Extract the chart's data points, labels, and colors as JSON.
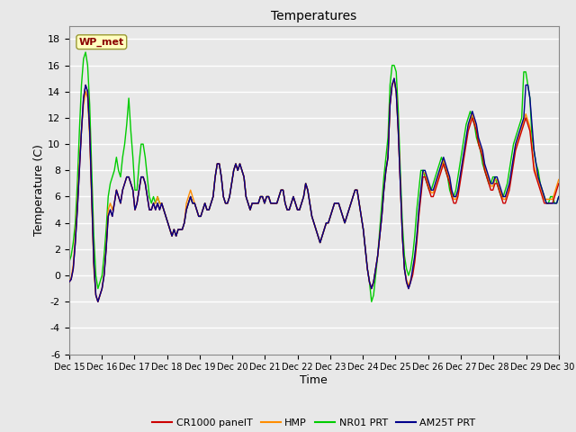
{
  "title": "Temperatures",
  "xlabel": "Time",
  "ylabel": "Temperature (C)",
  "ylim": [
    -6,
    19
  ],
  "yticks": [
    -6,
    -4,
    -2,
    0,
    2,
    4,
    6,
    8,
    10,
    12,
    14,
    16,
    18
  ],
  "x_labels": [
    "Dec 15",
    "Dec 16",
    "Dec 17",
    "Dec 18",
    "Dec 19",
    "Dec 20",
    "Dec 21",
    "Dec 22",
    "Dec 23",
    "Dec 24",
    "Dec 25",
    "Dec 26",
    "Dec 27",
    "Dec 28",
    "Dec 29",
    "Dec 30"
  ],
  "annotation_text": "WP_met",
  "annotation_color": "#8B0000",
  "annotation_bg": "#FFFFC0",
  "bg_color": "#E8E8E8",
  "plot_bg": "#E8E8E8",
  "grid_color": "white",
  "line_colors": {
    "CR1000 panelT": "#CC0000",
    "HMP": "#FF8C00",
    "NR01 PRT": "#00CC00",
    "AM25T PRT": "#00008B"
  },
  "legend_labels": [
    "CR1000 panelT",
    "HMP",
    "NR01 PRT",
    "AM25T PRT"
  ],
  "cr1000": [
    -0.5,
    -0.3,
    0.5,
    2.5,
    5.0,
    8.0,
    11.0,
    13.5,
    14.5,
    14.0,
    11.0,
    6.0,
    1.0,
    -1.5,
    -2.0,
    -1.5,
    -1.0,
    0.0,
    2.0,
    4.5,
    5.0,
    4.5,
    5.5,
    6.5,
    6.0,
    5.5,
    6.5,
    7.0,
    7.5,
    7.5,
    7.0,
    6.5,
    5.0,
    5.5,
    6.5,
    7.5,
    7.5,
    7.0,
    6.0,
    5.0,
    5.0,
    5.5,
    5.0,
    5.5,
    5.0,
    5.5,
    5.0,
    4.5,
    4.0,
    3.5,
    3.0,
    3.5,
    3.0,
    3.5,
    3.5,
    3.5,
    4.0,
    5.0,
    5.5,
    6.0,
    5.5,
    5.5,
    5.0,
    4.5,
    4.5,
    5.0,
    5.5,
    5.0,
    5.0,
    5.5,
    6.0,
    7.5,
    8.5,
    8.5,
    7.5,
    6.0,
    5.5,
    5.5,
    6.0,
    7.0,
    8.0,
    8.5,
    8.0,
    8.5,
    8.0,
    7.5,
    6.0,
    5.5,
    5.0,
    5.5,
    5.5,
    5.5,
    5.5,
    6.0,
    6.0,
    5.5,
    6.0,
    6.0,
    5.5,
    5.5,
    5.5,
    5.5,
    6.0,
    6.5,
    6.5,
    5.5,
    5.0,
    5.0,
    5.5,
    6.0,
    5.5,
    5.0,
    5.0,
    5.5,
    6.0,
    7.0,
    6.5,
    5.5,
    4.5,
    4.0,
    3.5,
    3.0,
    2.5,
    3.0,
    3.5,
    4.0,
    4.0,
    4.5,
    5.0,
    5.5,
    5.5,
    5.5,
    5.0,
    4.5,
    4.0,
    4.5,
    5.0,
    5.5,
    6.0,
    6.5,
    6.5,
    5.5,
    4.5,
    3.5,
    2.0,
    0.5,
    -0.5,
    -1.0,
    -0.5,
    0.5,
    1.5,
    3.0,
    4.5,
    6.5,
    8.0,
    9.0,
    13.0,
    14.5,
    15.0,
    14.0,
    11.0,
    7.0,
    3.0,
    0.5,
    -0.5,
    -1.0,
    -0.5,
    0.0,
    1.0,
    2.5,
    4.5,
    6.0,
    7.5,
    7.5,
    7.0,
    6.5,
    6.0,
    6.0,
    6.5,
    7.0,
    7.5,
    8.0,
    8.5,
    8.0,
    7.5,
    7.0,
    6.0,
    5.5,
    5.5,
    6.0,
    7.0,
    8.0,
    9.0,
    10.0,
    11.0,
    11.5,
    12.0,
    11.5,
    11.0,
    10.0,
    9.5,
    9.0,
    8.0,
    7.5,
    7.0,
    6.5,
    6.5,
    7.0,
    7.0,
    6.5,
    6.0,
    5.5,
    5.5,
    6.0,
    6.5,
    7.5,
    8.5,
    9.5,
    10.0,
    10.5,
    11.0,
    11.5,
    12.0,
    11.5,
    11.0,
    9.5,
    8.0,
    7.5,
    7.0,
    6.5,
    6.0,
    5.5,
    5.5,
    5.5,
    5.5,
    5.5,
    6.0,
    6.5,
    7.0
  ],
  "hmp": [
    -0.5,
    -0.2,
    0.8,
    3.0,
    5.5,
    8.5,
    11.0,
    13.0,
    14.0,
    13.5,
    10.5,
    5.5,
    0.5,
    -1.5,
    -2.0,
    -1.5,
    -1.0,
    0.2,
    2.2,
    5.0,
    5.5,
    5.0,
    5.5,
    6.5,
    6.0,
    5.5,
    6.5,
    7.0,
    7.5,
    7.5,
    7.0,
    6.5,
    5.0,
    5.5,
    6.5,
    7.5,
    7.5,
    7.0,
    6.0,
    5.0,
    5.0,
    5.5,
    5.5,
    6.0,
    5.5,
    5.5,
    5.0,
    4.5,
    4.0,
    3.5,
    3.0,
    3.5,
    3.0,
    3.5,
    3.5,
    3.5,
    4.0,
    5.5,
    6.0,
    6.5,
    6.0,
    5.5,
    5.0,
    4.5,
    4.5,
    5.0,
    5.5,
    5.0,
    5.0,
    5.5,
    6.0,
    7.5,
    8.5,
    8.5,
    7.5,
    6.0,
    5.5,
    5.5,
    6.0,
    7.0,
    8.0,
    8.5,
    8.0,
    8.5,
    8.0,
    7.5,
    6.0,
    5.5,
    5.0,
    5.5,
    5.5,
    5.5,
    5.5,
    6.0,
    6.0,
    5.5,
    6.0,
    6.0,
    5.5,
    5.5,
    5.5,
    5.5,
    6.0,
    6.5,
    6.5,
    5.5,
    5.0,
    5.0,
    5.5,
    6.0,
    5.5,
    5.0,
    5.0,
    5.5,
    6.0,
    7.0,
    6.5,
    5.5,
    4.5,
    4.0,
    3.5,
    3.0,
    2.5,
    3.0,
    3.5,
    4.0,
    4.0,
    4.5,
    5.0,
    5.5,
    5.5,
    5.5,
    5.0,
    4.5,
    4.0,
    4.5,
    5.0,
    5.5,
    6.0,
    6.5,
    6.5,
    5.5,
    4.5,
    3.5,
    2.0,
    0.5,
    -0.5,
    -1.0,
    -0.5,
    0.5,
    1.5,
    3.0,
    4.5,
    6.5,
    8.0,
    9.0,
    13.0,
    14.5,
    14.8,
    14.0,
    11.0,
    7.0,
    3.0,
    0.5,
    -0.3,
    -0.8,
    -0.3,
    0.3,
    1.3,
    2.8,
    4.8,
    6.3,
    7.8,
    7.8,
    7.3,
    6.8,
    6.3,
    6.3,
    6.8,
    7.3,
    7.8,
    8.3,
    8.8,
    8.3,
    7.8,
    7.3,
    6.3,
    5.8,
    5.8,
    6.3,
    7.3,
    8.3,
    9.3,
    10.3,
    11.3,
    11.8,
    12.3,
    11.8,
    11.3,
    10.3,
    9.8,
    9.3,
    8.3,
    7.8,
    7.3,
    6.8,
    6.8,
    7.3,
    7.3,
    6.8,
    6.3,
    5.8,
    5.8,
    6.3,
    6.8,
    7.8,
    8.8,
    9.8,
    10.3,
    10.8,
    11.3,
    11.8,
    12.3,
    11.8,
    11.3,
    9.8,
    8.3,
    7.8,
    7.3,
    6.8,
    6.3,
    5.8,
    5.8,
    5.8,
    5.8,
    5.8,
    6.3,
    6.8,
    7.3
  ],
  "nr01": [
    1.0,
    1.5,
    2.5,
    4.0,
    7.0,
    11.0,
    14.5,
    16.5,
    17.0,
    16.0,
    13.0,
    8.0,
    3.0,
    0.0,
    -1.0,
    -0.5,
    0.0,
    1.5,
    3.5,
    6.0,
    7.0,
    7.5,
    8.0,
    9.0,
    8.0,
    7.5,
    9.0,
    10.0,
    11.5,
    13.5,
    11.0,
    9.0,
    6.5,
    6.5,
    8.5,
    10.0,
    10.0,
    9.0,
    7.5,
    6.0,
    5.5,
    6.0,
    5.5,
    6.0,
    5.5,
    5.5,
    5.0,
    4.5,
    4.0,
    3.5,
    3.0,
    3.5,
    3.0,
    3.5,
    3.5,
    3.5,
    4.0,
    5.0,
    5.5,
    6.0,
    5.5,
    5.5,
    5.0,
    4.5,
    4.5,
    5.0,
    5.5,
    5.0,
    5.0,
    5.5,
    6.0,
    7.5,
    8.5,
    8.5,
    7.5,
    6.0,
    5.5,
    5.5,
    6.0,
    7.0,
    8.0,
    8.5,
    8.0,
    8.5,
    8.0,
    7.5,
    6.0,
    5.5,
    5.0,
    5.5,
    5.5,
    5.5,
    5.5,
    6.0,
    6.0,
    5.5,
    6.0,
    6.0,
    5.5,
    5.5,
    5.5,
    5.5,
    6.0,
    6.5,
    6.5,
    5.5,
    5.0,
    5.0,
    5.5,
    6.0,
    5.5,
    5.0,
    5.0,
    5.5,
    6.0,
    7.0,
    6.5,
    5.5,
    4.5,
    4.0,
    3.5,
    3.0,
    2.5,
    3.0,
    3.5,
    4.0,
    4.0,
    4.5,
    5.0,
    5.5,
    5.5,
    5.5,
    5.0,
    4.5,
    4.0,
    4.5,
    5.0,
    5.5,
    6.0,
    6.5,
    6.5,
    5.5,
    4.5,
    3.5,
    2.0,
    0.5,
    -0.5,
    -2.0,
    -1.5,
    0.0,
    1.5,
    3.5,
    5.5,
    7.5,
    9.0,
    10.5,
    14.5,
    16.0,
    16.0,
    15.5,
    12.5,
    8.0,
    4.0,
    1.5,
    0.5,
    0.0,
    0.5,
    1.5,
    3.0,
    5.0,
    6.5,
    8.0,
    8.0,
    7.5,
    7.0,
    6.5,
    6.5,
    7.0,
    7.5,
    8.0,
    8.5,
    9.0,
    8.5,
    8.0,
    7.5,
    6.5,
    6.0,
    6.0,
    6.5,
    7.5,
    8.5,
    9.5,
    10.5,
    11.5,
    12.0,
    12.5,
    12.0,
    11.5,
    10.5,
    10.0,
    9.5,
    8.5,
    8.0,
    7.5,
    7.0,
    7.0,
    7.5,
    7.5,
    7.0,
    6.5,
    6.0,
    6.0,
    6.5,
    7.0,
    8.0,
    9.0,
    10.0,
    10.5,
    11.0,
    11.5,
    12.0,
    15.5,
    15.5,
    14.5,
    13.5,
    10.5,
    9.5,
    8.5,
    8.0,
    7.0,
    6.5,
    6.0,
    5.5,
    5.5,
    6.0,
    6.0,
    5.5,
    5.5,
    6.0
  ],
  "am25t": [
    -0.5,
    -0.3,
    0.5,
    2.5,
    5.0,
    8.0,
    11.0,
    13.5,
    14.5,
    14.0,
    11.0,
    6.0,
    1.0,
    -1.5,
    -2.0,
    -1.5,
    -1.0,
    0.0,
    2.0,
    4.5,
    5.0,
    4.5,
    5.5,
    6.5,
    6.0,
    5.5,
    6.5,
    7.0,
    7.5,
    7.5,
    7.0,
    6.5,
    5.0,
    5.5,
    6.5,
    7.5,
    7.5,
    7.0,
    6.0,
    5.0,
    5.0,
    5.5,
    5.0,
    5.5,
    5.0,
    5.5,
    5.0,
    4.5,
    4.0,
    3.5,
    3.0,
    3.5,
    3.0,
    3.5,
    3.5,
    3.5,
    4.0,
    5.0,
    5.5,
    6.0,
    5.5,
    5.5,
    5.0,
    4.5,
    4.5,
    5.0,
    5.5,
    5.0,
    5.0,
    5.5,
    6.0,
    7.5,
    8.5,
    8.5,
    7.5,
    6.0,
    5.5,
    5.5,
    6.0,
    7.0,
    8.0,
    8.5,
    8.0,
    8.5,
    8.0,
    7.5,
    6.0,
    5.5,
    5.0,
    5.5,
    5.5,
    5.5,
    5.5,
    6.0,
    6.0,
    5.5,
    6.0,
    6.0,
    5.5,
    5.5,
    5.5,
    5.5,
    6.0,
    6.5,
    6.5,
    5.5,
    5.0,
    5.0,
    5.5,
    6.0,
    5.5,
    5.0,
    5.0,
    5.5,
    6.0,
    7.0,
    6.5,
    5.5,
    4.5,
    4.0,
    3.5,
    3.0,
    2.5,
    3.0,
    3.5,
    4.0,
    4.0,
    4.5,
    5.0,
    5.5,
    5.5,
    5.5,
    5.0,
    4.5,
    4.0,
    4.5,
    5.0,
    5.5,
    6.0,
    6.5,
    6.5,
    5.5,
    4.5,
    3.5,
    2.0,
    0.5,
    -0.5,
    -1.0,
    -0.5,
    0.5,
    1.5,
    3.0,
    4.5,
    6.5,
    8.0,
    9.0,
    13.0,
    14.5,
    15.0,
    14.0,
    11.0,
    7.0,
    3.0,
    0.5,
    -0.5,
    -1.0,
    -0.5,
    0.5,
    1.5,
    3.0,
    5.0,
    6.5,
    8.0,
    8.0,
    7.5,
    7.0,
    6.5,
    6.5,
    7.0,
    7.5,
    8.0,
    8.5,
    9.0,
    8.5,
    8.0,
    7.5,
    6.5,
    6.0,
    6.0,
    6.5,
    7.5,
    8.5,
    9.5,
    10.5,
    11.5,
    12.0,
    12.5,
    12.0,
    11.5,
    10.5,
    10.0,
    9.5,
    8.5,
    8.0,
    7.5,
    7.0,
    7.0,
    7.5,
    7.5,
    7.0,
    6.5,
    6.0,
    6.0,
    6.5,
    7.0,
    8.0,
    9.0,
    10.0,
    10.5,
    11.0,
    11.5,
    12.0,
    14.5,
    14.5,
    13.5,
    11.5,
    9.5,
    8.5,
    7.5,
    7.0,
    6.5,
    6.0,
    5.5,
    5.5,
    5.5,
    5.5,
    5.5,
    5.5,
    6.0
  ]
}
